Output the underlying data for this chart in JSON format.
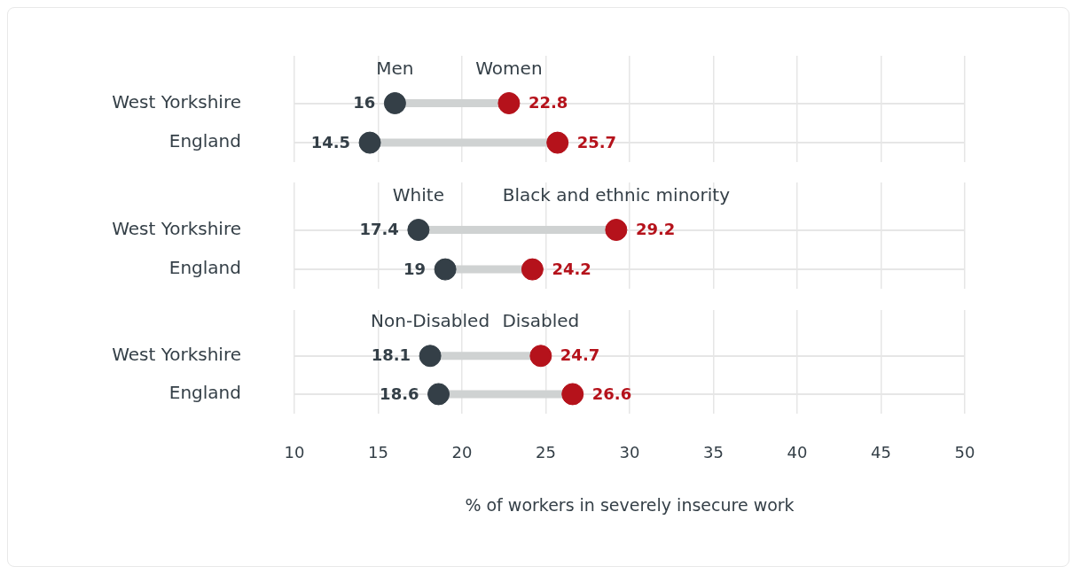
{
  "chart_data": [
    {
      "type": "scatter",
      "categories": [
        "West Yorkshire",
        "England"
      ],
      "series": [
        {
          "name": "Men",
          "color": "#343f47",
          "values": [
            16,
            14.5
          ]
        },
        {
          "name": "Women",
          "color": "#b5121b",
          "values": [
            22.8,
            25.7
          ]
        }
      ],
      "orientation": "horizontal",
      "xlim": [
        10,
        50
      ],
      "xticks": [
        10,
        15,
        20,
        25,
        30,
        35,
        40,
        45,
        50
      ],
      "tick_labels": "y",
      "grid": true,
      "legend": false,
      "data_labels": true,
      "marker": "circle"
    },
    {
      "type": "scatter",
      "categories": [
        "West Yorkshire",
        "England"
      ],
      "series": [
        {
          "name": "White",
          "color": "#343f47",
          "values": [
            17.4,
            19
          ]
        },
        {
          "name": "Black and ethnic minority",
          "color": "#b5121b",
          "values": [
            29.2,
            24.2
          ]
        }
      ],
      "orientation": "horizontal",
      "xlim": [
        10,
        50
      ],
      "xticks": [
        10,
        15,
        20,
        25,
        30,
        35,
        40,
        45,
        50
      ],
      "tick_labels": "y",
      "grid": true,
      "legend": false,
      "data_labels": true,
      "marker": "circle"
    },
    {
      "type": "scatter",
      "categories": [
        "West Yorkshire",
        "England"
      ],
      "series": [
        {
          "name": "Non-Disabled",
          "color": "#343f47",
          "values": [
            18.1,
            18.6
          ]
        },
        {
          "name": "Disabled",
          "color": "#b5121b",
          "values": [
            24.7,
            26.6
          ]
        }
      ],
      "orientation": "horizontal",
      "xlim": [
        10,
        50
      ],
      "xticks": [
        10,
        15,
        20,
        25,
        30,
        35,
        40,
        45,
        50
      ],
      "xlabel": "% of workers in severely insecure work",
      "grid": true,
      "legend": false,
      "data_labels": true,
      "marker": "circle"
    }
  ]
}
